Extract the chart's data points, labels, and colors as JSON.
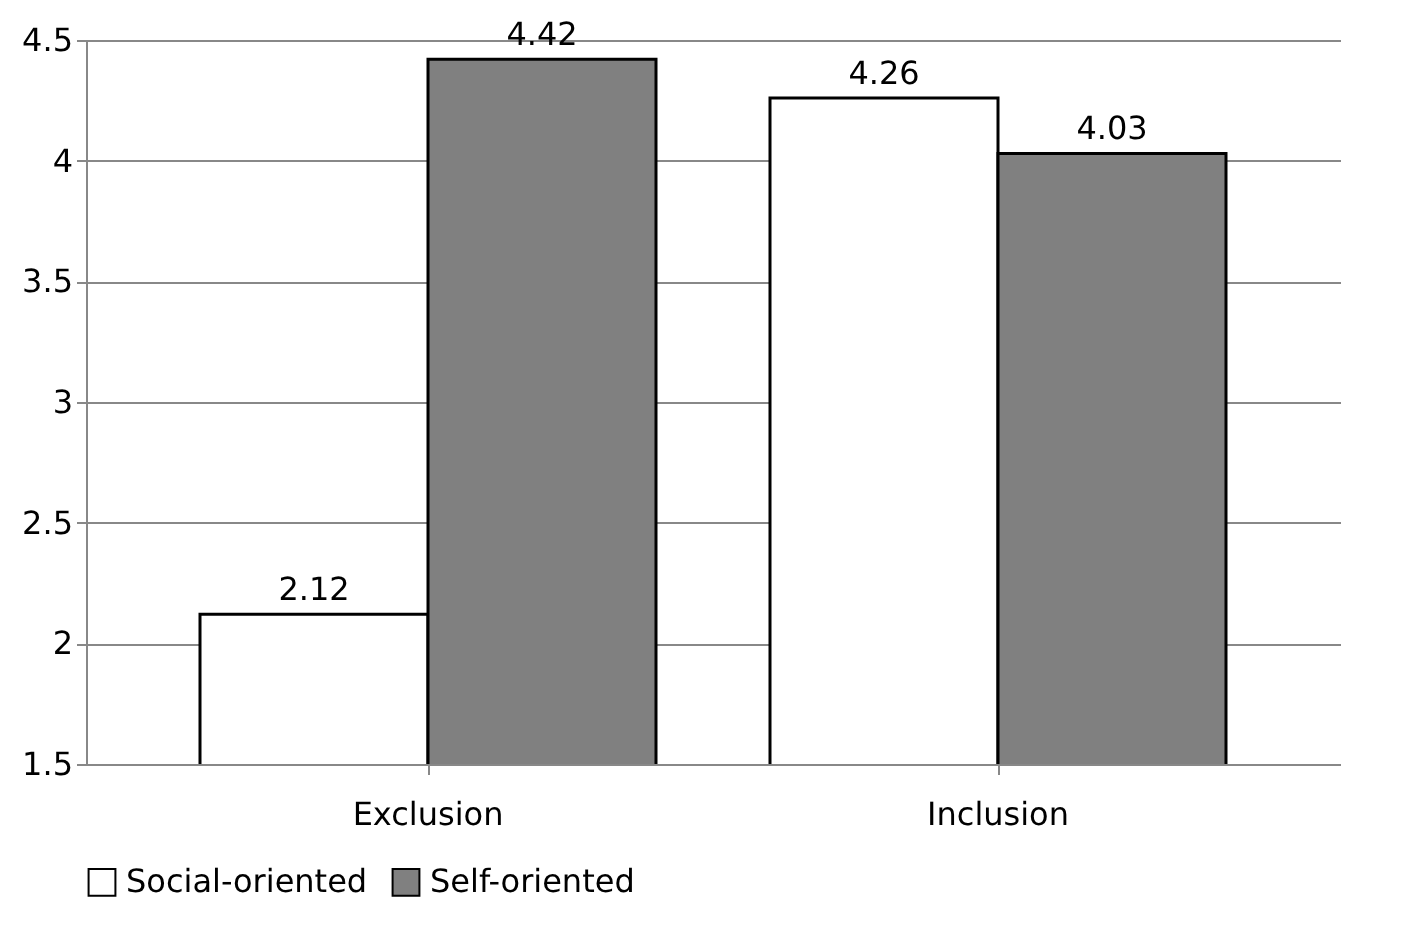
{
  "chart_data": {
    "type": "bar",
    "categories": [
      "Exclusion",
      "Inclusion"
    ],
    "series": [
      {
        "name": "Social-oriented",
        "color": "#ffffff",
        "values": [
          2.12,
          4.26
        ]
      },
      {
        "name": "Self-oriented",
        "color": "#808080",
        "values": [
          4.42,
          4.03
        ]
      }
    ],
    "ylim": [
      1.5,
      4.5
    ],
    "yticks": [
      1.5,
      2,
      2.5,
      3,
      3.5,
      4,
      4.5
    ],
    "grid": "y",
    "legend": "bottom",
    "data_labels": true
  }
}
